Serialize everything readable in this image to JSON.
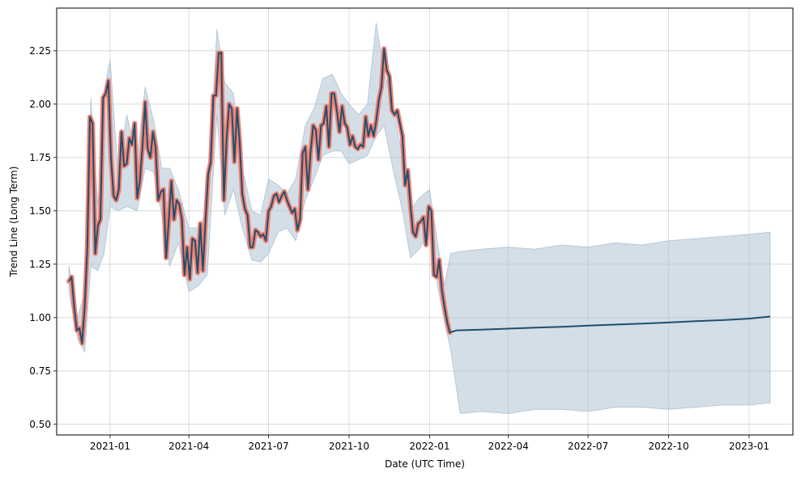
{
  "chart_data": {
    "type": "line",
    "xlabel": "Date (UTC Time)",
    "ylabel": "Trend Line (Long Term)",
    "x_range": [
      "2020-11-01",
      "2023-02-20"
    ],
    "ylim": [
      0.45,
      2.45
    ],
    "grid": true,
    "x_ticks": [
      {
        "date": "2021-01-01",
        "label": "2021-01"
      },
      {
        "date": "2021-04-01",
        "label": "2021-04"
      },
      {
        "date": "2021-07-01",
        "label": "2021-07"
      },
      {
        "date": "2021-10-01",
        "label": "2021-10"
      },
      {
        "date": "2022-01-01",
        "label": "2022-01"
      },
      {
        "date": "2022-04-01",
        "label": "2022-04"
      },
      {
        "date": "2022-07-01",
        "label": "2022-07"
      },
      {
        "date": "2022-10-01",
        "label": "2022-10"
      },
      {
        "date": "2023-01-01",
        "label": "2023-01"
      }
    ],
    "y_ticks": [
      0.5,
      0.75,
      1.0,
      1.25,
      1.5,
      1.75,
      2.0,
      2.25
    ],
    "y_tick_labels": [
      "0.50",
      "0.75",
      "1.00",
      "1.25",
      "1.50",
      "1.75",
      "2.00",
      "2.25"
    ],
    "colors": {
      "actual_highlight": "#f08070",
      "trend_line": "#1f4e6e",
      "uncertainty_band": "#aec3d3"
    },
    "series": [
      {
        "role": "actual-highlight",
        "x": [
          "2020-11-15",
          "2020-11-18",
          "2020-11-21",
          "2020-11-24",
          "2020-11-27",
          "2020-11-30",
          "2020-12-03",
          "2020-12-06",
          "2020-12-09",
          "2020-12-12",
          "2020-12-15",
          "2020-12-18",
          "2020-12-21",
          "2020-12-24",
          "2020-12-27",
          "2020-12-30",
          "2021-01-02",
          "2021-01-05",
          "2021-01-08",
          "2021-01-11",
          "2021-01-14",
          "2021-01-17",
          "2021-01-20",
          "2021-01-23",
          "2021-01-26",
          "2021-01-29",
          "2021-02-01",
          "2021-02-04",
          "2021-02-07",
          "2021-02-10",
          "2021-02-13",
          "2021-02-16",
          "2021-02-19",
          "2021-02-22",
          "2021-02-25",
          "2021-02-28",
          "2021-03-03",
          "2021-03-06",
          "2021-03-09",
          "2021-03-12",
          "2021-03-15",
          "2021-03-18",
          "2021-03-21",
          "2021-03-24",
          "2021-03-27",
          "2021-03-30",
          "2021-04-02",
          "2021-04-05",
          "2021-04-08",
          "2021-04-11",
          "2021-04-14",
          "2021-04-17",
          "2021-04-20",
          "2021-04-23",
          "2021-04-26",
          "2021-04-29",
          "2021-05-02",
          "2021-05-05",
          "2021-05-08",
          "2021-05-11",
          "2021-05-14",
          "2021-05-17",
          "2021-05-20",
          "2021-05-23",
          "2021-05-26",
          "2021-05-29",
          "2021-06-01",
          "2021-06-04",
          "2021-06-07",
          "2021-06-10",
          "2021-06-13",
          "2021-06-16",
          "2021-06-19",
          "2021-06-22",
          "2021-06-25",
          "2021-06-28",
          "2021-07-01",
          "2021-07-04",
          "2021-07-07",
          "2021-07-10",
          "2021-07-13",
          "2021-07-16",
          "2021-07-19",
          "2021-07-22",
          "2021-07-25",
          "2021-07-28",
          "2021-07-31",
          "2021-08-03",
          "2021-08-06",
          "2021-08-09",
          "2021-08-12",
          "2021-08-15",
          "2021-08-18",
          "2021-08-21",
          "2021-08-24",
          "2021-08-27",
          "2021-08-30",
          "2021-09-02",
          "2021-09-05",
          "2021-09-08",
          "2021-09-11",
          "2021-09-14",
          "2021-09-17",
          "2021-09-20",
          "2021-09-23",
          "2021-09-26",
          "2021-09-29",
          "2021-10-02",
          "2021-10-05",
          "2021-10-08",
          "2021-10-11",
          "2021-10-14",
          "2021-10-17",
          "2021-10-20",
          "2021-10-23",
          "2021-10-26",
          "2021-10-29",
          "2021-11-01",
          "2021-11-04",
          "2021-11-07",
          "2021-11-10",
          "2021-11-13",
          "2021-11-16",
          "2021-11-19",
          "2021-11-22",
          "2021-11-25",
          "2021-11-28",
          "2021-12-01",
          "2021-12-04",
          "2021-12-07",
          "2021-12-10",
          "2021-12-13",
          "2021-12-16",
          "2021-12-19",
          "2021-12-22",
          "2021-12-25",
          "2021-12-28",
          "2021-12-31",
          "2022-01-03",
          "2022-01-06",
          "2022-01-09",
          "2022-01-12",
          "2022-01-15",
          "2022-01-18",
          "2022-01-21",
          "2022-01-24"
        ],
        "y": [
          1.17,
          1.19,
          1.05,
          0.94,
          0.95,
          0.88,
          1.05,
          1.33,
          1.94,
          1.91,
          1.3,
          1.43,
          1.46,
          2.03,
          2.05,
          2.11,
          1.75,
          1.57,
          1.55,
          1.6,
          1.87,
          1.71,
          1.72,
          1.84,
          1.81,
          1.91,
          1.56,
          1.64,
          1.8,
          2.01,
          1.79,
          1.75,
          1.87,
          1.8,
          1.55,
          1.59,
          1.6,
          1.28,
          1.45,
          1.64,
          1.46,
          1.55,
          1.53,
          1.46,
          1.2,
          1.33,
          1.18,
          1.37,
          1.36,
          1.21,
          1.44,
          1.22,
          1.45,
          1.67,
          1.73,
          2.04,
          2.04,
          2.24,
          2.24,
          1.55,
          1.83,
          2.0,
          1.98,
          1.73,
          1.98,
          1.82,
          1.58,
          1.51,
          1.48,
          1.33,
          1.33,
          1.41,
          1.4,
          1.38,
          1.39,
          1.36,
          1.5,
          1.52,
          1.57,
          1.58,
          1.54,
          1.57,
          1.59,
          1.55,
          1.52,
          1.49,
          1.51,
          1.41,
          1.46,
          1.77,
          1.8,
          1.6,
          1.77,
          1.9,
          1.88,
          1.74,
          1.9,
          1.91,
          1.99,
          1.8,
          2.05,
          2.05,
          1.97,
          1.87,
          1.99,
          1.91,
          1.89,
          1.81,
          1.85,
          1.8,
          1.79,
          1.81,
          1.8,
          1.94,
          1.85,
          1.9,
          1.85,
          1.92,
          2.02,
          2.08,
          2.26,
          2.16,
          2.13,
          1.97,
          1.95,
          1.97,
          1.91,
          1.85,
          1.62,
          1.69,
          1.53,
          1.4,
          1.38,
          1.44,
          1.45,
          1.47,
          1.34,
          1.52,
          1.5,
          1.2,
          1.19,
          1.27,
          1.13,
          1.05,
          0.98,
          0.93
        ]
      },
      {
        "role": "trend",
        "x": [
          "2020-11-15",
          "2020-11-18",
          "2020-11-21",
          "2020-11-24",
          "2020-11-27",
          "2020-11-30",
          "2020-12-03",
          "2020-12-06",
          "2020-12-09",
          "2020-12-12",
          "2020-12-15",
          "2020-12-18",
          "2020-12-21",
          "2020-12-24",
          "2020-12-27",
          "2020-12-30",
          "2021-01-02",
          "2021-01-05",
          "2021-01-08",
          "2021-01-11",
          "2021-01-14",
          "2021-01-17",
          "2021-01-20",
          "2021-01-23",
          "2021-01-26",
          "2021-01-29",
          "2021-02-01",
          "2021-02-04",
          "2021-02-07",
          "2021-02-10",
          "2021-02-13",
          "2021-02-16",
          "2021-02-19",
          "2021-02-22",
          "2021-02-25",
          "2021-02-28",
          "2021-03-03",
          "2021-03-06",
          "2021-03-09",
          "2021-03-12",
          "2021-03-15",
          "2021-03-18",
          "2021-03-21",
          "2021-03-24",
          "2021-03-27",
          "2021-03-30",
          "2021-04-02",
          "2021-04-05",
          "2021-04-08",
          "2021-04-11",
          "2021-04-14",
          "2021-04-17",
          "2021-04-20",
          "2021-04-23",
          "2021-04-26",
          "2021-04-29",
          "2021-05-02",
          "2021-05-05",
          "2021-05-08",
          "2021-05-11",
          "2021-05-14",
          "2021-05-17",
          "2021-05-20",
          "2021-05-23",
          "2021-05-26",
          "2021-05-29",
          "2021-06-01",
          "2021-06-04",
          "2021-06-07",
          "2021-06-10",
          "2021-06-13",
          "2021-06-16",
          "2021-06-19",
          "2021-06-22",
          "2021-06-25",
          "2021-06-28",
          "2021-07-01",
          "2021-07-04",
          "2021-07-07",
          "2021-07-10",
          "2021-07-13",
          "2021-07-16",
          "2021-07-19",
          "2021-07-22",
          "2021-07-25",
          "2021-07-28",
          "2021-07-31",
          "2021-08-03",
          "2021-08-06",
          "2021-08-09",
          "2021-08-12",
          "2021-08-15",
          "2021-08-18",
          "2021-08-21",
          "2021-08-24",
          "2021-08-27",
          "2021-08-30",
          "2021-09-02",
          "2021-09-05",
          "2021-09-08",
          "2021-09-11",
          "2021-09-14",
          "2021-09-17",
          "2021-09-20",
          "2021-09-23",
          "2021-09-26",
          "2021-09-29",
          "2021-10-02",
          "2021-10-05",
          "2021-10-08",
          "2021-10-11",
          "2021-10-14",
          "2021-10-17",
          "2021-10-20",
          "2021-10-23",
          "2021-10-26",
          "2021-10-29",
          "2021-11-01",
          "2021-11-04",
          "2021-11-07",
          "2021-11-10",
          "2021-11-13",
          "2021-11-16",
          "2021-11-19",
          "2021-11-22",
          "2021-11-25",
          "2021-11-28",
          "2021-12-01",
          "2021-12-04",
          "2021-12-07",
          "2021-12-10",
          "2021-12-13",
          "2021-12-16",
          "2021-12-19",
          "2021-12-22",
          "2021-12-25",
          "2021-12-28",
          "2021-12-31",
          "2022-01-03",
          "2022-01-06",
          "2022-01-09",
          "2022-01-12",
          "2022-01-15",
          "2022-01-18",
          "2022-01-21",
          "2022-01-24",
          "2022-02-01",
          "2022-03-01",
          "2022-04-01",
          "2022-05-01",
          "2022-06-01",
          "2022-07-01",
          "2022-08-01",
          "2022-09-01",
          "2022-10-01",
          "2022-11-01",
          "2022-12-01",
          "2023-01-01",
          "2023-01-25"
        ],
        "y": [
          1.17,
          1.19,
          1.05,
          0.94,
          0.95,
          0.88,
          1.05,
          1.33,
          1.94,
          1.91,
          1.3,
          1.43,
          1.46,
          2.03,
          2.05,
          2.11,
          1.75,
          1.57,
          1.55,
          1.6,
          1.87,
          1.71,
          1.72,
          1.84,
          1.81,
          1.91,
          1.56,
          1.64,
          1.8,
          2.01,
          1.79,
          1.75,
          1.87,
          1.8,
          1.55,
          1.59,
          1.6,
          1.28,
          1.45,
          1.64,
          1.46,
          1.55,
          1.53,
          1.46,
          1.2,
          1.33,
          1.18,
          1.37,
          1.36,
          1.21,
          1.44,
          1.22,
          1.45,
          1.67,
          1.73,
          2.04,
          2.04,
          2.24,
          2.24,
          1.55,
          1.83,
          2.0,
          1.98,
          1.73,
          1.98,
          1.82,
          1.58,
          1.51,
          1.48,
          1.33,
          1.33,
          1.41,
          1.4,
          1.38,
          1.39,
          1.36,
          1.5,
          1.52,
          1.57,
          1.58,
          1.54,
          1.57,
          1.59,
          1.55,
          1.52,
          1.49,
          1.51,
          1.41,
          1.46,
          1.77,
          1.8,
          1.6,
          1.77,
          1.9,
          1.88,
          1.74,
          1.9,
          1.91,
          1.99,
          1.8,
          2.05,
          2.05,
          1.97,
          1.87,
          1.99,
          1.91,
          1.89,
          1.81,
          1.85,
          1.8,
          1.79,
          1.81,
          1.8,
          1.94,
          1.85,
          1.9,
          1.85,
          1.92,
          2.02,
          2.08,
          2.26,
          2.16,
          2.13,
          1.97,
          1.95,
          1.97,
          1.91,
          1.85,
          1.62,
          1.69,
          1.53,
          1.4,
          1.38,
          1.44,
          1.45,
          1.47,
          1.34,
          1.52,
          1.5,
          1.2,
          1.19,
          1.27,
          1.13,
          1.05,
          0.98,
          0.93,
          0.94,
          0.943,
          0.948,
          0.953,
          0.957,
          0.962,
          0.967,
          0.972,
          0.977,
          0.983,
          0.988,
          0.995,
          1.005
        ]
      }
    ],
    "uncertainty_band": {
      "x": [
        "2020-11-15",
        "2020-11-25",
        "2020-12-03",
        "2020-12-10",
        "2020-12-18",
        "2020-12-25",
        "2021-01-01",
        "2021-01-10",
        "2021-01-20",
        "2021-02-01",
        "2021-02-10",
        "2021-02-20",
        "2021-03-01",
        "2021-03-10",
        "2021-03-20",
        "2021-04-01",
        "2021-04-12",
        "2021-04-22",
        "2021-05-03",
        "2021-05-12",
        "2021-05-22",
        "2021-06-01",
        "2021-06-12",
        "2021-06-22",
        "2021-07-01",
        "2021-07-12",
        "2021-07-22",
        "2021-08-01",
        "2021-08-12",
        "2021-08-22",
        "2021-09-01",
        "2021-09-12",
        "2021-09-22",
        "2021-10-01",
        "2021-10-12",
        "2021-10-22",
        "2021-11-01",
        "2021-11-10",
        "2021-11-20",
        "2021-12-01",
        "2021-12-10",
        "2021-12-20",
        "2022-01-01",
        "2022-01-10",
        "2022-01-18",
        "2022-01-25",
        "2022-02-05",
        "2022-03-01",
        "2022-04-01",
        "2022-05-01",
        "2022-06-01",
        "2022-07-01",
        "2022-08-01",
        "2022-09-01",
        "2022-10-01",
        "2022-11-01",
        "2022-12-01",
        "2023-01-01",
        "2023-01-25"
      ],
      "upper": [
        1.24,
        1.0,
        1.12,
        2.03,
        1.52,
        2.05,
        2.21,
        1.68,
        1.95,
        1.75,
        2.08,
        1.92,
        1.7,
        1.7,
        1.6,
        1.42,
        1.42,
        1.5,
        2.35,
        2.1,
        2.05,
        1.7,
        1.5,
        1.48,
        1.65,
        1.62,
        1.58,
        1.65,
        1.9,
        1.98,
        2.12,
        2.14,
        2.05,
        2.0,
        1.95,
        2.0,
        2.38,
        2.15,
        2.0,
        1.75,
        1.5,
        1.56,
        1.6,
        1.35,
        1.15,
        1.3,
        1.31,
        1.32,
        1.33,
        1.32,
        1.34,
        1.33,
        1.35,
        1.34,
        1.36,
        1.37,
        1.38,
        1.39,
        1.4
      ],
      "lower": [
        1.12,
        0.9,
        0.84,
        1.24,
        1.22,
        1.3,
        1.52,
        1.5,
        1.52,
        1.5,
        1.7,
        1.68,
        1.48,
        1.24,
        1.35,
        1.12,
        1.15,
        1.2,
        1.95,
        1.48,
        1.6,
        1.42,
        1.27,
        1.26,
        1.3,
        1.4,
        1.42,
        1.36,
        1.55,
        1.65,
        1.76,
        1.78,
        1.78,
        1.72,
        1.74,
        1.76,
        1.85,
        1.9,
        1.7,
        1.5,
        1.28,
        1.32,
        1.4,
        1.15,
        0.98,
        0.85,
        0.55,
        0.56,
        0.55,
        0.57,
        0.57,
        0.56,
        0.58,
        0.58,
        0.57,
        0.58,
        0.59,
        0.59,
        0.6
      ]
    }
  }
}
